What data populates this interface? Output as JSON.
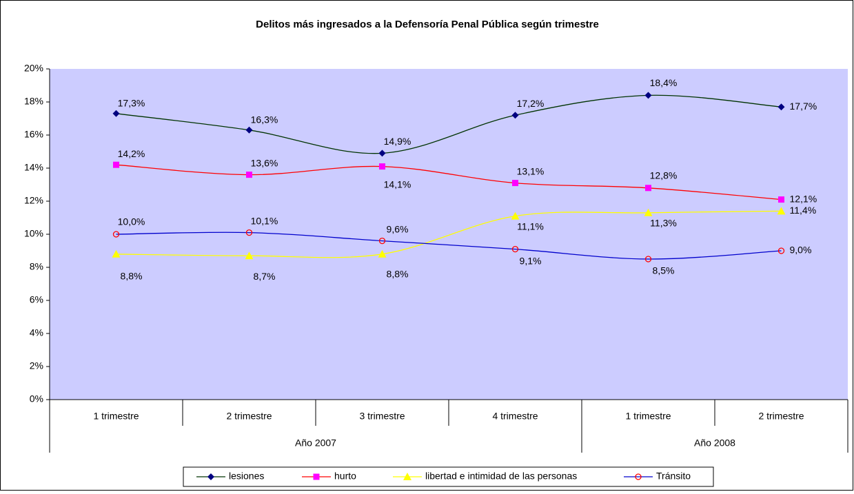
{
  "chart_data": {
    "type": "line",
    "title": "Delitos más ingresados a la Defensoría Penal Pública según trimestre",
    "categories": [
      "1 trimestre",
      "2 trimestre",
      "3 trimestre",
      "4 trimestre",
      "1 trimestre",
      "2 trimestre"
    ],
    "category_groups": [
      "Año 2007",
      "Año 2007",
      "Año 2007",
      "Año 2007",
      "Año 2008",
      "Año 2008"
    ],
    "ylim": [
      0,
      20
    ],
    "yticks": [
      {
        "value": 0,
        "label": "0%"
      },
      {
        "value": 2,
        "label": "2%"
      },
      {
        "value": 4,
        "label": "4%"
      },
      {
        "value": 6,
        "label": "6%"
      },
      {
        "value": 8,
        "label": "8%"
      },
      {
        "value": 10,
        "label": "10%"
      },
      {
        "value": 12,
        "label": "12%"
      },
      {
        "value": 14,
        "label": "14%"
      },
      {
        "value": 16,
        "label": "16%"
      },
      {
        "value": 18,
        "label": "18%"
      },
      {
        "value": 20,
        "label": "20%"
      }
    ],
    "legend": "bottom",
    "series": [
      {
        "name": "lesiones",
        "color": "#003300",
        "marker": "diamond",
        "marker_color": "#000080",
        "values": [
          17.3,
          16.3,
          14.9,
          17.2,
          18.4,
          17.7
        ],
        "value_labels": [
          "17,3%",
          "16,3%",
          "14,9%",
          "17,2%",
          "18,4%",
          "17,7%"
        ]
      },
      {
        "name": "hurto",
        "color": "#ff0000",
        "marker": "square",
        "marker_color": "#ff00ff",
        "values": [
          14.2,
          13.6,
          14.1,
          13.1,
          12.8,
          12.1
        ],
        "value_labels": [
          "14,2%",
          "13,6%",
          "14,1%",
          "13,1%",
          "12,8%",
          "12,1%"
        ]
      },
      {
        "name": "libertad e intimidad de las personas",
        "color": "#ffff00",
        "marker": "triangle",
        "marker_color": "#ffff00",
        "values": [
          8.8,
          8.7,
          8.8,
          11.1,
          11.3,
          11.4
        ],
        "value_labels": [
          "8,8%",
          "8,7%",
          "8,8%",
          "11,1%",
          "11,3%",
          "11,4%"
        ]
      },
      {
        "name": "Tránsito",
        "color": "#0000cc",
        "marker": "circle",
        "marker_color": "#ff0000",
        "values": [
          10.0,
          10.1,
          9.6,
          9.1,
          8.5,
          9.0
        ],
        "value_labels": [
          "10,0%",
          "10,1%",
          "9,6%",
          "9,1%",
          "8,5%",
          "9,0%"
        ]
      }
    ]
  }
}
